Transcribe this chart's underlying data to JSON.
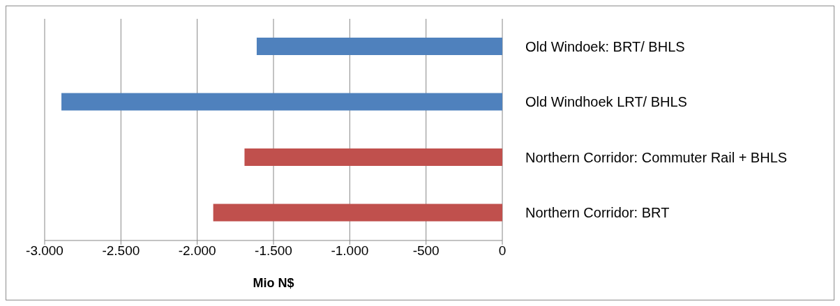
{
  "chart_data": {
    "type": "bar",
    "orientation": "horizontal",
    "xlabel": "Mio N$",
    "categories": [
      "Old Windoek: BRT/ BHLS",
      "Old Windhoek LRT/ BHLS",
      "Northern Corridor: Commuter Rail + BHLS",
      "Northern Corridor: BRT"
    ],
    "values": [
      -1610,
      -2890,
      -1690,
      -1895
    ],
    "colors": [
      "#4f81bd",
      "#4f81bd",
      "#c0504d",
      "#c0504d"
    ],
    "xlim": [
      -3000,
      0
    ],
    "xticks": [
      {
        "value": -3000,
        "label": "-3.000"
      },
      {
        "value": -2500,
        "label": "-2.500"
      },
      {
        "value": -2000,
        "label": "-2.000"
      },
      {
        "value": -1500,
        "label": "-1.500"
      },
      {
        "value": -1000,
        "label": "-1.000"
      },
      {
        "value": -500,
        "label": "-500"
      },
      0
    ],
    "grid": "x",
    "legend": false
  }
}
